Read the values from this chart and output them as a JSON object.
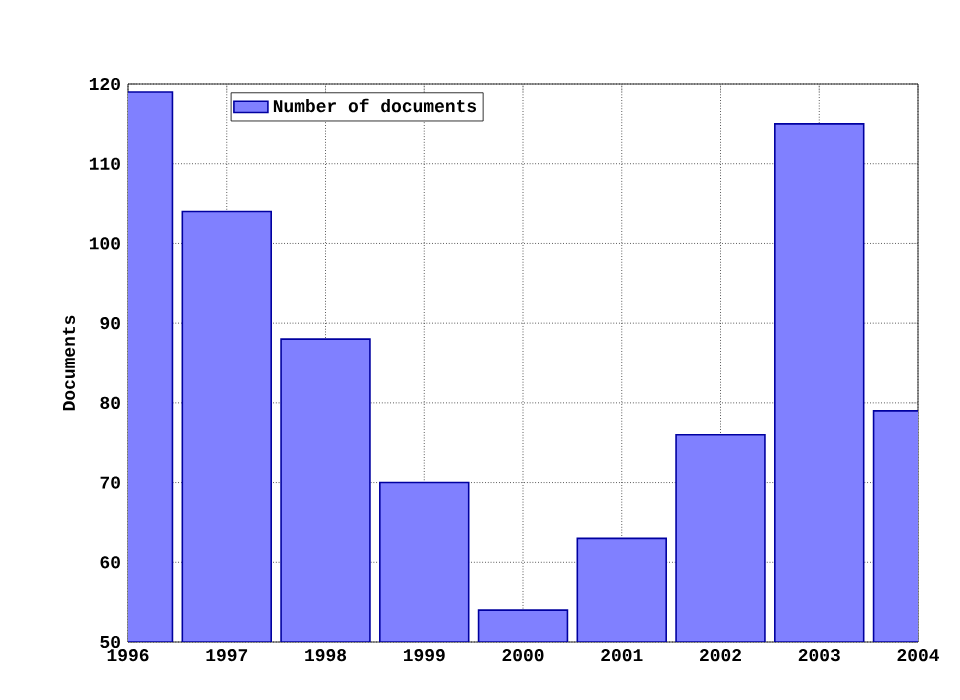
{
  "chart_data": {
    "type": "bar",
    "ylabel": "Documents",
    "x": [
      1996,
      1997,
      1998,
      1999,
      2000,
      2001,
      2002,
      2003,
      2004
    ],
    "series": [
      {
        "name": "Number of documents",
        "color": "#8080ff",
        "values": [
          119,
          104,
          88,
          70,
          54,
          63,
          76,
          115,
          79
        ]
      }
    ],
    "xlim": [
      1996,
      2004
    ],
    "xticks": [
      1996,
      1997,
      1998,
      1999,
      2000,
      2001,
      2002,
      2003,
      2004
    ],
    "ylim": [
      50,
      120
    ],
    "yticks": [
      50,
      60,
      70,
      80,
      90,
      100,
      110,
      120
    ],
    "grid": true,
    "legend": "top left"
  }
}
